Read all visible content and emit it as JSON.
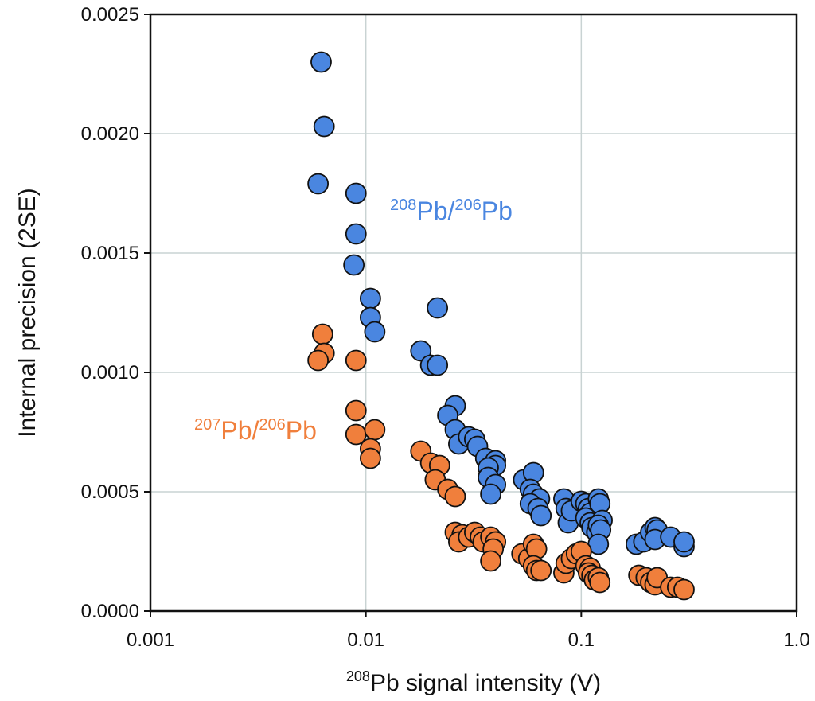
{
  "chart_data": {
    "type": "scatter",
    "x_scale": "log",
    "xlim": [
      0.001,
      1.0
    ],
    "ylim": [
      0.0,
      0.0025
    ],
    "grid": true,
    "x_ticks": [
      "0.001",
      "0.01",
      "0.1",
      "1.0"
    ],
    "x_tick_values": [
      0.001,
      0.01,
      0.1,
      1.0
    ],
    "y_ticks": [
      "0.0000",
      "0.0005",
      "0.0010",
      "0.0015",
      "0.0020",
      "0.0025"
    ],
    "y_tick_values": [
      0.0,
      0.0005,
      0.001,
      0.0015,
      0.002,
      0.0025
    ],
    "xlabel": {
      "sup": "208",
      "text": "Pb signal intensity (V)"
    },
    "ylabel": "Internal precision (2SE)",
    "series": [
      {
        "name": {
          "sup1": "208",
          "mid": "Pb/",
          "sup2": "206",
          "end": "Pb"
        },
        "color": "#4a86e0",
        "points": [
          [
            0.0062,
            0.0023
          ],
          [
            0.0064,
            0.00203
          ],
          [
            0.006,
            0.00179
          ],
          [
            0.009,
            0.00175
          ],
          [
            0.009,
            0.00158
          ],
          [
            0.0088,
            0.00145
          ],
          [
            0.0105,
            0.00131
          ],
          [
            0.0105,
            0.00123
          ],
          [
            0.011,
            0.00117
          ],
          [
            0.0215,
            0.00127
          ],
          [
            0.018,
            0.00109
          ],
          [
            0.02,
            0.00103
          ],
          [
            0.0215,
            0.00103
          ],
          [
            0.026,
            0.00086
          ],
          [
            0.024,
            0.00082
          ],
          [
            0.026,
            0.00076
          ],
          [
            0.027,
            0.0007
          ],
          [
            0.03,
            0.00073
          ],
          [
            0.032,
            0.00072
          ],
          [
            0.033,
            0.00069
          ],
          [
            0.036,
            0.00064
          ],
          [
            0.04,
            0.00063
          ],
          [
            0.04,
            0.00061
          ],
          [
            0.037,
            0.0006
          ],
          [
            0.037,
            0.00056
          ],
          [
            0.04,
            0.00053
          ],
          [
            0.038,
            0.00049
          ],
          [
            0.054,
            0.00055
          ],
          [
            0.06,
            0.00058
          ],
          [
            0.058,
            0.00051
          ],
          [
            0.06,
            0.00049
          ],
          [
            0.064,
            0.00047
          ],
          [
            0.058,
            0.00045
          ],
          [
            0.063,
            0.00043
          ],
          [
            0.065,
            0.0004
          ],
          [
            0.083,
            0.00047
          ],
          [
            0.085,
            0.00043
          ],
          [
            0.087,
            0.00037
          ],
          [
            0.09,
            0.00042
          ],
          [
            0.1,
            0.00046
          ],
          [
            0.105,
            0.00045
          ],
          [
            0.108,
            0.00043
          ],
          [
            0.11,
            0.00041
          ],
          [
            0.105,
            0.00039
          ],
          [
            0.11,
            0.00037
          ],
          [
            0.112,
            0.00035
          ],
          [
            0.118,
            0.00033
          ],
          [
            0.12,
            0.00047
          ],
          [
            0.122,
            0.00045
          ],
          [
            0.125,
            0.00038
          ],
          [
            0.12,
            0.00036
          ],
          [
            0.123,
            0.00034
          ],
          [
            0.12,
            0.00028
          ],
          [
            0.18,
            0.00028
          ],
          [
            0.195,
            0.00029
          ],
          [
            0.21,
            0.00033
          ],
          [
            0.22,
            0.00035
          ],
          [
            0.225,
            0.00034
          ],
          [
            0.22,
            0.0003
          ],
          [
            0.26,
            0.00031
          ],
          [
            0.3,
            0.00027
          ],
          [
            0.3,
            0.00029
          ]
        ]
      },
      {
        "name": {
          "sup1": "207",
          "mid": "Pb/",
          "sup2": "206",
          "end": "Pb"
        },
        "color": "#f07f3c",
        "points": [
          [
            0.0063,
            0.00116
          ],
          [
            0.0064,
            0.00108
          ],
          [
            0.006,
            0.00105
          ],
          [
            0.009,
            0.00105
          ],
          [
            0.009,
            0.00084
          ],
          [
            0.009,
            0.00074
          ],
          [
            0.011,
            0.00076
          ],
          [
            0.0105,
            0.00068
          ],
          [
            0.0105,
            0.00064
          ],
          [
            0.018,
            0.00067
          ],
          [
            0.02,
            0.00062
          ],
          [
            0.022,
            0.00061
          ],
          [
            0.021,
            0.00055
          ],
          [
            0.024,
            0.00051
          ],
          [
            0.026,
            0.00048
          ],
          [
            0.026,
            0.00033
          ],
          [
            0.028,
            0.00032
          ],
          [
            0.027,
            0.00029
          ],
          [
            0.03,
            0.00031
          ],
          [
            0.032,
            0.00033
          ],
          [
            0.034,
            0.00031
          ],
          [
            0.035,
            0.00029
          ],
          [
            0.038,
            0.00031
          ],
          [
            0.04,
            0.00029
          ],
          [
            0.039,
            0.00026
          ],
          [
            0.038,
            0.00021
          ],
          [
            0.053,
            0.00024
          ],
          [
            0.057,
            0.00022
          ],
          [
            0.06,
            0.00028
          ],
          [
            0.062,
            0.00026
          ],
          [
            0.06,
            0.00019
          ],
          [
            0.062,
            0.00017
          ],
          [
            0.065,
            0.00017
          ],
          [
            0.083,
            0.00016
          ],
          [
            0.085,
            0.0002
          ],
          [
            0.09,
            0.00022
          ],
          [
            0.095,
            0.00024
          ],
          [
            0.1,
            0.00025
          ],
          [
            0.105,
            0.00019
          ],
          [
            0.11,
            0.00018
          ],
          [
            0.108,
            0.00016
          ],
          [
            0.112,
            0.00015
          ],
          [
            0.115,
            0.00013
          ],
          [
            0.12,
            0.00014
          ],
          [
            0.122,
            0.00012
          ],
          [
            0.185,
            0.00015
          ],
          [
            0.2,
            0.00014
          ],
          [
            0.21,
            0.00012
          ],
          [
            0.22,
            0.00011
          ],
          [
            0.225,
            0.00014
          ],
          [
            0.26,
            0.0001
          ],
          [
            0.28,
            0.0001
          ],
          [
            0.3,
            9e-05
          ]
        ]
      }
    ]
  }
}
